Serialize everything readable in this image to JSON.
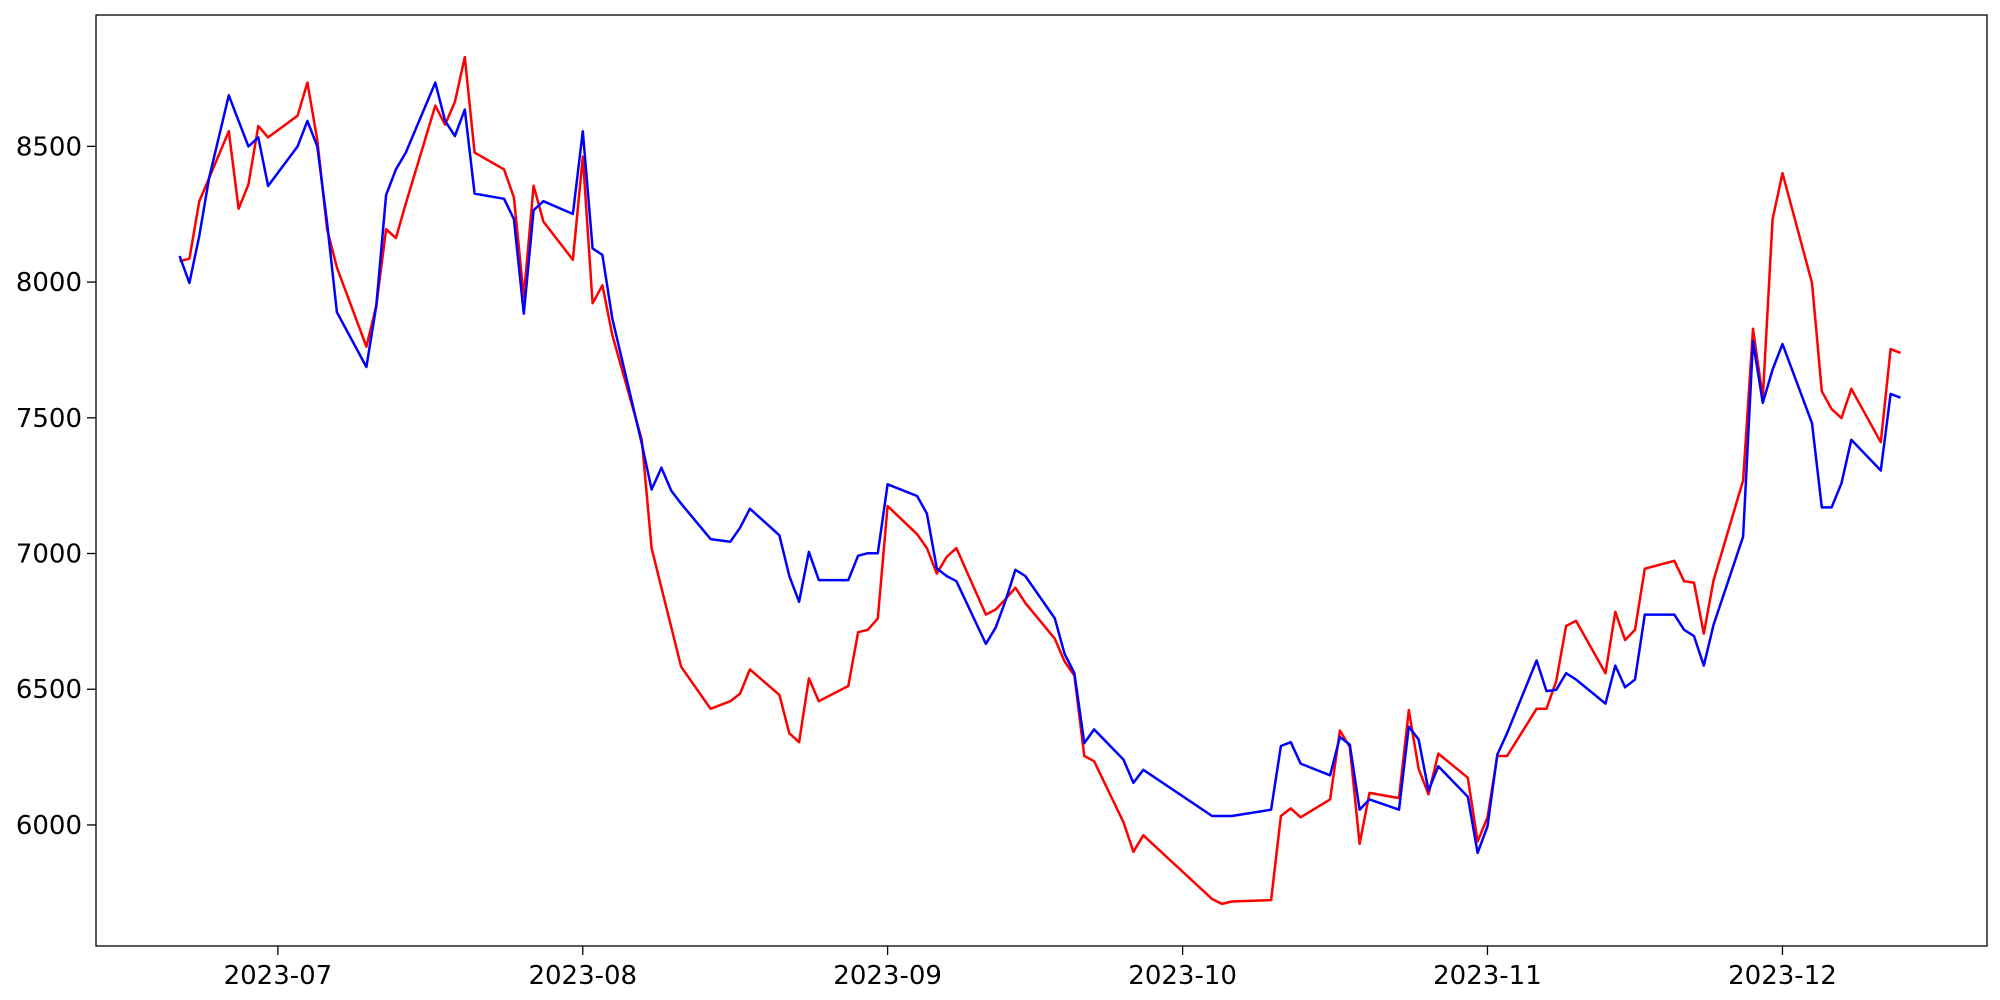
{
  "chart_data": {
    "type": "line",
    "x": [
      -10,
      -9,
      -8,
      -7,
      -5,
      -4,
      -3,
      -2,
      -1,
      2,
      3,
      4,
      5,
      6,
      9,
      10,
      11,
      12,
      13,
      16,
      17,
      18,
      19,
      20,
      23,
      24,
      25,
      26,
      27,
      30,
      31,
      32,
      33,
      34,
      37,
      38,
      39,
      40,
      41,
      44,
      46,
      47,
      48,
      51,
      52,
      53,
      54,
      55,
      58,
      59,
      60,
      61,
      62,
      65,
      66,
      67,
      68,
      69,
      72,
      73,
      74,
      75,
      76,
      79,
      80,
      81,
      82,
      83,
      86,
      87,
      88,
      95,
      96,
      97,
      101,
      102,
      103,
      104,
      107,
      108,
      109,
      110,
      111,
      114,
      115,
      116,
      117,
      118,
      121,
      122,
      123,
      124,
      125,
      128,
      129,
      130,
      131,
      132,
      135,
      136,
      137,
      138,
      139,
      142,
      143,
      144,
      145,
      146,
      149,
      150,
      151,
      152,
      153,
      156,
      157,
      158,
      159,
      160,
      163,
      164,
      165
    ],
    "series": [
      {
        "color": "#ff0000",
        "values": [
          8077,
          8086,
          8298,
          8383,
          8556,
          8270,
          8359,
          8575,
          8533,
          8613,
          8735,
          8523,
          8195,
          8054,
          7762,
          7913,
          8195,
          8162,
          8289,
          8650,
          8580,
          8664,
          8829,
          8477,
          8415,
          8312,
          7945,
          8355,
          8223,
          8082,
          8462,
          7922,
          7988,
          7805,
          7419,
          7020,
          6874,
          6728,
          6583,
          6428,
          6456,
          6484,
          6573,
          6479,
          6338,
          6305,
          6540,
          6456,
          6512,
          6710,
          6719,
          6761,
          7175,
          7071,
          7020,
          6926,
          6987,
          7020,
          6775,
          6794,
          6832,
          6874,
          6818,
          6686,
          6602,
          6550,
          6254,
          6235,
          6009,
          5901,
          5962,
          5727,
          5709,
          5718,
          5723,
          6033,
          6061,
          6028,
          6094,
          6348,
          6287,
          5930,
          6118,
          6099,
          6423,
          6207,
          6113,
          6263,
          6174,
          5939,
          6028,
          6254,
          6254,
          6428,
          6428,
          6531,
          6733,
          6752,
          6559,
          6785,
          6681,
          6719,
          6944,
          6973,
          6898,
          6893,
          6705,
          6902,
          7269,
          7828,
          7574,
          8232,
          8401,
          7997,
          7598,
          7532,
          7499,
          7607,
          7410,
          7753,
          7739
        ]
      },
      {
        "color": "#0000ff",
        "values": [
          8096,
          7997,
          8171,
          8383,
          8688,
          8594,
          8500,
          8533,
          8354,
          8500,
          8594,
          8500,
          8218,
          7889,
          7687,
          7913,
          8321,
          8415,
          8477,
          8735,
          8594,
          8538,
          8636,
          8326,
          8307,
          8232,
          7884,
          8265,
          8298,
          8251,
          8556,
          8124,
          8100,
          7866,
          7405,
          7236,
          7316,
          7231,
          7184,
          7053,
          7043,
          7095,
          7165,
          7067,
          6917,
          6822,
          7006,
          6902,
          6902,
          6992,
          7001,
          7001,
          7255,
          7212,
          7147,
          6945,
          6917,
          6898,
          6667,
          6728,
          6827,
          6940,
          6917,
          6761,
          6630,
          6559,
          6301,
          6352,
          6240,
          6155,
          6203,
          6033,
          6033,
          6033,
          6056,
          6291,
          6305,
          6226,
          6183,
          6324,
          6296,
          6056,
          6094,
          6056,
          6362,
          6315,
          6127,
          6216,
          6104,
          5897,
          5995,
          6259,
          6338,
          6606,
          6493,
          6498,
          6559,
          6536,
          6447,
          6587,
          6507,
          6536,
          6775,
          6775,
          6719,
          6696,
          6587,
          6738,
          7062,
          7781,
          7555,
          7678,
          7772,
          7480,
          7170,
          7170,
          7259,
          7419,
          7306,
          7588,
          7574
        ]
      }
    ],
    "xlim": [
      -18.5,
      173.8
    ],
    "xticks": [
      {
        "value": 0,
        "label": "2023-07"
      },
      {
        "value": 31,
        "label": "2023-08"
      },
      {
        "value": 62,
        "label": "2023-09"
      },
      {
        "value": 92,
        "label": "2023-10"
      },
      {
        "value": 123,
        "label": "2023-11"
      },
      {
        "value": 153,
        "label": "2023-12"
      }
    ],
    "ylim": [
      5554,
      8984
    ],
    "yticks": [
      6000,
      6500,
      7000,
      7500,
      8000,
      8500
    ]
  }
}
